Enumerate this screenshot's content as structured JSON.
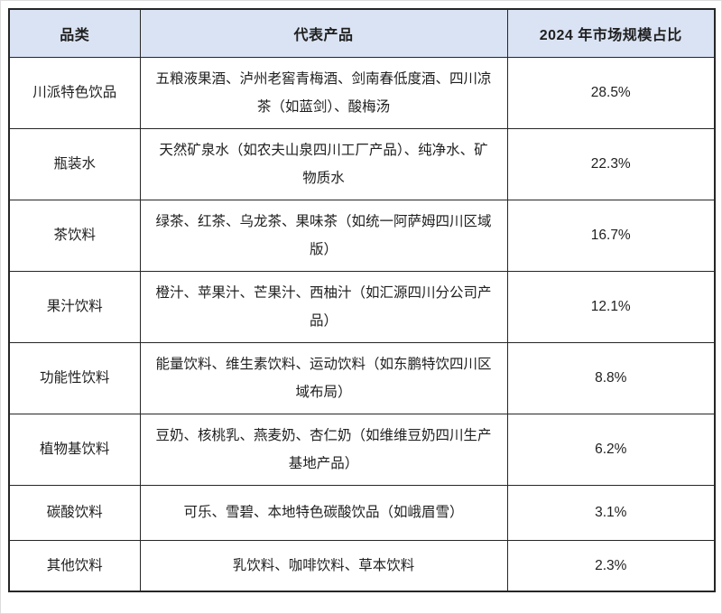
{
  "table": {
    "title_semantic": "2024 Sichuan beverage market table",
    "columns": [
      {
        "label": "品类"
      },
      {
        "label": "代表产品"
      },
      {
        "label": "2024 年市场规模占比"
      }
    ],
    "rows": [
      {
        "category": "川派特色饮品",
        "products": "五粮液果酒、泸州老窖青梅酒、剑南春低度酒、四川凉茶（如蓝剑）、酸梅汤",
        "share": "28.5%"
      },
      {
        "category": "瓶装水",
        "products": "天然矿泉水（如农夫山泉四川工厂产品）、纯净水、矿物质水",
        "share": "22.3%"
      },
      {
        "category": "茶饮料",
        "products": "绿茶、红茶、乌龙茶、果味茶（如统一阿萨姆四川区域版）",
        "share": "16.7%"
      },
      {
        "category": "果汁饮料",
        "products": "橙汁、苹果汁、芒果汁、西柚汁（如汇源四川分公司产品）",
        "share": "12.1%"
      },
      {
        "category": "功能性饮料",
        "products": "能量饮料、维生素饮料、运动饮料（如东鹏特饮四川区域布局）",
        "share": "8.8%"
      },
      {
        "category": "植物基饮料",
        "products": "豆奶、核桃乳、燕麦奶、杏仁奶（如维维豆奶四川生产基地产品）",
        "share": "6.2%"
      },
      {
        "category": "碳酸饮料",
        "products": "可乐、雪碧、本地特色碳酸饮品（如峨眉雪）",
        "share": "3.1%"
      },
      {
        "category": "其他饮料",
        "products": "乳饮料、咖啡饮料、草本饮料",
        "share": "2.3%"
      }
    ],
    "colors": {
      "header_bg": "#dae3f3",
      "border": "#262626",
      "text": "#1f1f1f"
    }
  }
}
